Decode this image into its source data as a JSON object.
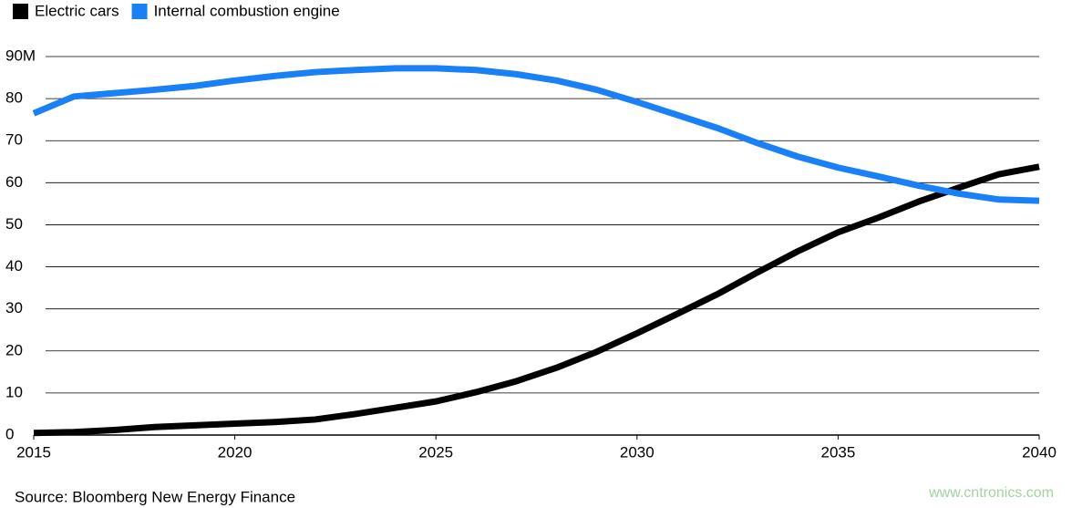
{
  "chart_data": {
    "type": "line",
    "x": [
      2015,
      2016,
      2017,
      2018,
      2019,
      2020,
      2021,
      2022,
      2023,
      2024,
      2025,
      2026,
      2027,
      2028,
      2029,
      2030,
      2031,
      2032,
      2033,
      2034,
      2035,
      2036,
      2037,
      2038,
      2039,
      2040
    ],
    "series": [
      {
        "name": "Electric cars",
        "color": "#000000",
        "values": [
          0.5,
          0.7,
          1.2,
          1.9,
          2.3,
          2.7,
          3.1,
          3.7,
          5,
          6.5,
          8,
          10.2,
          12.8,
          16,
          19.8,
          24.2,
          28.8,
          33.5,
          38.7,
          43.7,
          48.2,
          51.7,
          55.5,
          58.8,
          62,
          63.8
        ]
      },
      {
        "name": "Internal combustion engine",
        "color": "#1a80f5",
        "values": [
          76.5,
          80.5,
          81.3,
          82.1,
          83,
          84.3,
          85.4,
          86.3,
          86.8,
          87.2,
          87.2,
          86.8,
          85.8,
          84.3,
          82.1,
          79.2,
          76.1,
          73,
          69.4,
          66.2,
          63.6,
          61.5,
          59.3,
          57.4,
          56,
          55.7
        ]
      }
    ],
    "xlim": [
      2015,
      2040
    ],
    "xticks": [
      2015,
      2020,
      2025,
      2030,
      2035,
      2040
    ],
    "ylim": [
      0,
      90
    ],
    "yticks": [
      0,
      10,
      20,
      30,
      40,
      50,
      60,
      70,
      80,
      {
        "value": 90,
        "label": "90M"
      }
    ],
    "grid": true,
    "legend": "top-left",
    "source": "Source: Bloomberg New Energy Finance",
    "watermark": "www.cntronics.com"
  }
}
